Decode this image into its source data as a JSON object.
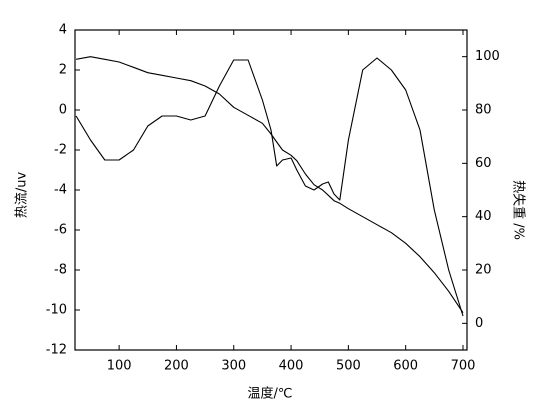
{
  "chart_data": {
    "type": "line",
    "x_label": "温度/℃",
    "y_label": "热流/uv",
    "y2_label": "热失重 /%",
    "x": [
      25,
      50,
      75,
      100,
      125,
      150,
      175,
      200,
      225,
      250,
      275,
      300,
      325,
      350,
      365,
      375,
      385,
      400,
      410,
      425,
      440,
      455,
      465,
      475,
      485,
      500,
      525,
      550,
      575,
      600,
      625,
      650,
      675,
      700
    ],
    "series": [
      {
        "color": "#000000",
        "values": [
          -0.3,
          -1.5,
          -2.5,
          -2.5,
          -2.0,
          -0.8,
          -0.3,
          -0.3,
          -0.5,
          -0.3,
          1.2,
          2.5,
          2.5,
          0.5,
          -1.0,
          -2.8,
          -2.5,
          -2.4,
          -3.0,
          -3.8,
          -4.0,
          -3.7,
          -3.6,
          -4.2,
          -4.5,
          -1.5,
          2.0,
          2.6,
          2.0,
          1.0,
          -1.0,
          -5.0,
          -8.0,
          -10.3
        ]
      },
      {
        "color": "#000000",
        "axis": "y2",
        "values": [
          99,
          100,
          99,
          98,
          96,
          94,
          93,
          92,
          91,
          89,
          86,
          81,
          78,
          75,
          71,
          68,
          65,
          63,
          61,
          56,
          52,
          50,
          48,
          46,
          45,
          43,
          40,
          37,
          34,
          30,
          25,
          19,
          12,
          4
        ]
      }
    ],
    "xlim": [
      23,
      707
    ],
    "xticks": [
      100,
      200,
      300,
      400,
      500,
      600,
      700
    ],
    "ylim": [
      -12,
      4
    ],
    "yticks": [
      -12,
      -10,
      -8,
      -6,
      -4,
      -2,
      0,
      2,
      4
    ],
    "y2lim": [
      -10,
      110
    ],
    "y2ticks": [
      0,
      20,
      40,
      60,
      80,
      100
    ]
  }
}
